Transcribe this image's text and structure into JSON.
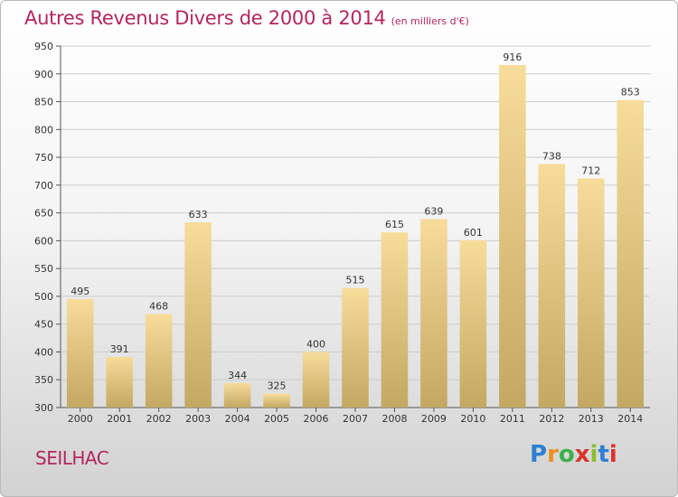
{
  "header": {
    "title": "Autres Revenus Divers de 2000 à 2014",
    "unit": "(en milliers d'€)"
  },
  "footer": {
    "commune": "SEILHAC",
    "logo": [
      "P",
      "r",
      "o",
      "x",
      "i",
      "t",
      "i"
    ]
  },
  "colors": {
    "accent": "#b3265f",
    "bar_light": "#f7dc9a",
    "bar_dark": "#c2a862",
    "grid": "#cccccc"
  },
  "chart_data": {
    "type": "bar",
    "title": "Autres Revenus Divers de 2000 à 2014",
    "subtitle": "(en milliers d'€)",
    "xlabel": "",
    "ylabel": "",
    "categories": [
      "2000",
      "2001",
      "2002",
      "2003",
      "2004",
      "2005",
      "2006",
      "2007",
      "2008",
      "2009",
      "2010",
      "2011",
      "2012",
      "2013",
      "2014"
    ],
    "values": [
      495,
      391,
      468,
      633,
      344,
      325,
      400,
      515,
      615,
      639,
      601,
      916,
      738,
      712,
      853
    ],
    "ylim": [
      300,
      950
    ],
    "yticks": [
      300,
      350,
      400,
      450,
      500,
      550,
      600,
      650,
      700,
      750,
      800,
      850,
      900,
      950
    ],
    "grid": true,
    "legend": "none"
  }
}
